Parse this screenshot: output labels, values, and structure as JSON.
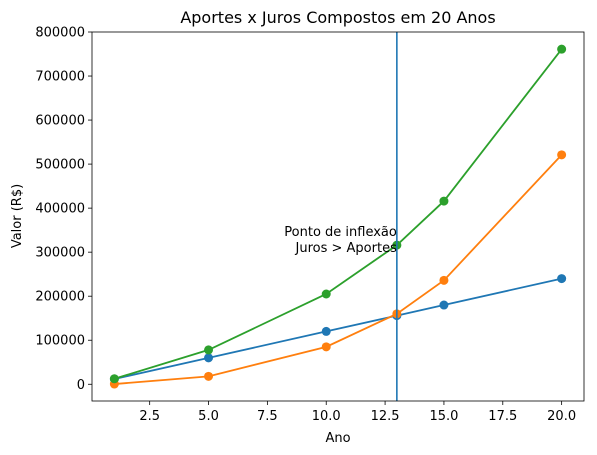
{
  "chart_data": {
    "type": "line",
    "title": "Aportes x Juros Compostos em 20 Anos",
    "xlabel": "Ano",
    "ylabel": "Valor (R$)",
    "xlim": [
      0.05,
      20.95
    ],
    "ylim": [
      -38000,
      800000
    ],
    "xticks": [
      2.5,
      5.0,
      7.5,
      10.0,
      12.5,
      15.0,
      17.5,
      20.0
    ],
    "xtick_labels": [
      "2.5",
      "5.0",
      "7.5",
      "10.0",
      "12.5",
      "15.0",
      "17.5",
      "20.0"
    ],
    "yticks": [
      0,
      100000,
      200000,
      300000,
      400000,
      500000,
      600000,
      700000,
      800000
    ],
    "ytick_labels": [
      "0",
      "100000",
      "200000",
      "300000",
      "400000",
      "500000",
      "600000",
      "700000",
      "800000"
    ],
    "grid": false,
    "x": [
      1,
      5,
      10,
      13,
      15,
      20
    ],
    "series": [
      {
        "color": "#1f77b4",
        "values": [
          12000,
          60000,
          120000,
          156000,
          180000,
          240000
        ]
      },
      {
        "color": "#ff7f0e",
        "values": [
          500,
          18000,
          85000,
          160000,
          236000,
          521000
        ]
      },
      {
        "color": "#2ca02c",
        "values": [
          12500,
          78000,
          205000,
          316000,
          416000,
          761000
        ]
      }
    ],
    "vline": {
      "x": 13,
      "color": "#1f77b4"
    },
    "annotation": {
      "lines": [
        "Ponto de inflexão",
        "Juros > Aportes"
      ],
      "x": 13,
      "y": 300000
    }
  }
}
